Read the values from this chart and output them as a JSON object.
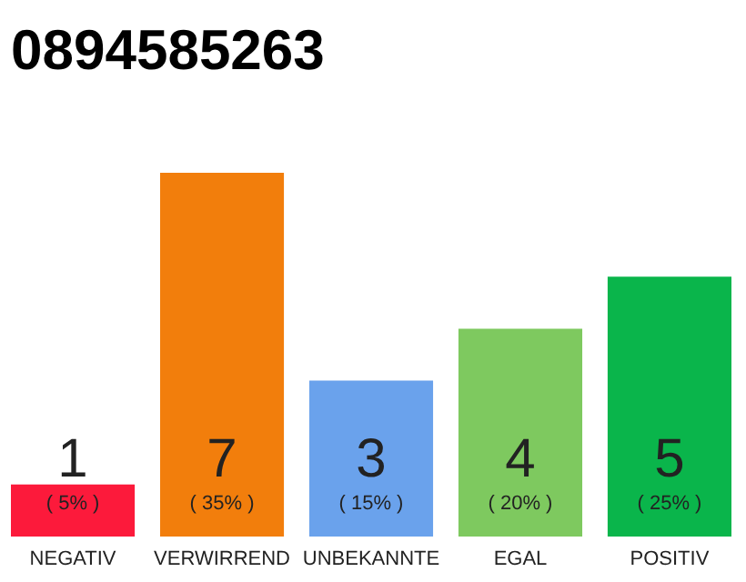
{
  "chart_data": {
    "type": "bar",
    "title": "0894585263",
    "categories": [
      "NEGATIV",
      "VERWIRREND",
      "UNBEKANNTE",
      "EGAL",
      "POSITIV"
    ],
    "values": [
      1,
      7,
      3,
      4,
      5
    ],
    "colors": [
      "#fc1a3b",
      "#f27e0c",
      "#6aa2ec",
      "#7ec95f",
      "#0ab54b"
    ],
    "data_labels": true,
    "annotations": [
      "( 5% )",
      "( 35% )",
      "( 15% )",
      "( 20% )",
      "( 25% )"
    ],
    "grid": false
  }
}
